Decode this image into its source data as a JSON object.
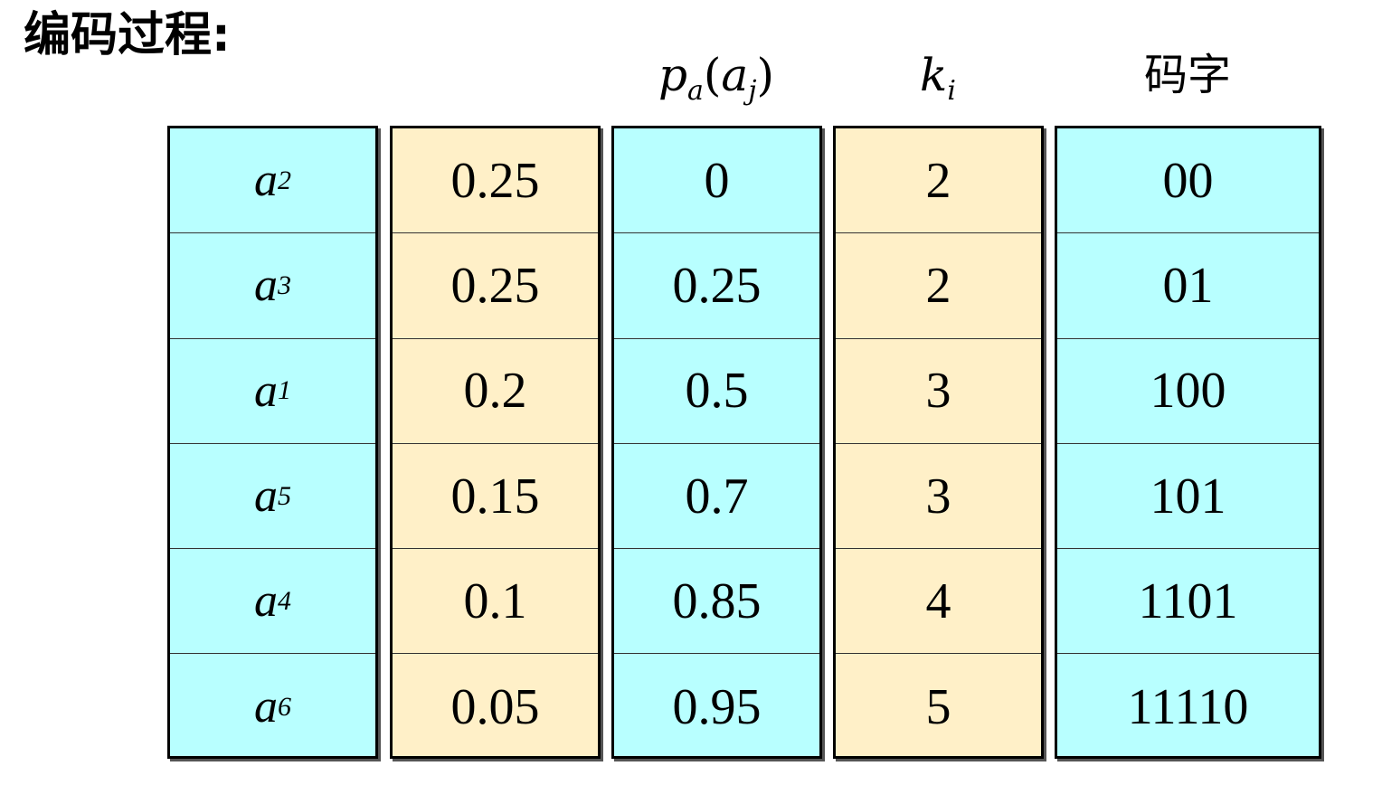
{
  "title": "编码过程:",
  "headers": {
    "cumulative": {
      "base": "p",
      "base_sub": "a",
      "arg": "a",
      "arg_sub": "j"
    },
    "length": {
      "base": "k",
      "sub": "i"
    },
    "codeword": "码字"
  },
  "colors": {
    "cyan": "#b8ffff",
    "tan": "#fff0c8"
  },
  "rows": [
    {
      "symbol": "a",
      "index": "2",
      "prob": "0.25",
      "cum": "0",
      "k": "2",
      "code": "00"
    },
    {
      "symbol": "a",
      "index": "3",
      "prob": "0.25",
      "cum": "0.25",
      "k": "2",
      "code": "01"
    },
    {
      "symbol": "a",
      "index": "1",
      "prob": "0.2",
      "cum": "0.5",
      "k": "3",
      "code": "100"
    },
    {
      "symbol": "a",
      "index": "5",
      "prob": "0.15",
      "cum": "0.7",
      "k": "3",
      "code": "101"
    },
    {
      "symbol": "a",
      "index": "4",
      "prob": "0.1",
      "cum": "0.85",
      "k": "4",
      "code": "1101"
    },
    {
      "symbol": "a",
      "index": "6",
      "prob": "0.05",
      "cum": "0.95",
      "k": "5",
      "code": "11110"
    }
  ]
}
